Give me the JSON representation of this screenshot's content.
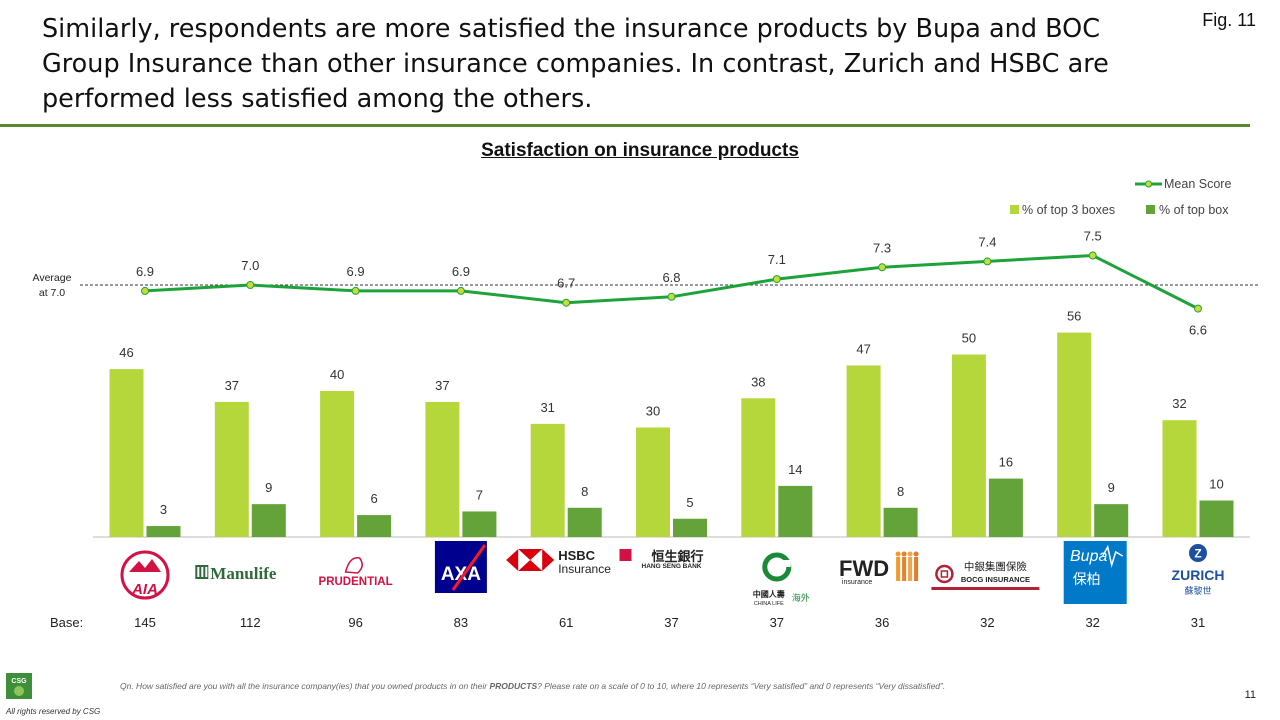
{
  "slide": {
    "headline": "Similarly, respondents are more satisfied the insurance products by Bupa and BOC Group Insurance than other insurance companies. In contrast, Zurich and HSBC are performed less satisfied among the others.",
    "fig_label": "Fig. 11",
    "footnote_pre": "Qn. How satisfied are you with all the insurance company(ies) that you owned products in on their ",
    "footnote_bold": "PRODUCTS",
    "footnote_post": "? Please rate on a scale of 0 to 10, where 10 represents “Very satisfied” and 0 represents “Very dissatisfied”.",
    "copyright": "All rights reserved by CSG",
    "page_number": "11",
    "logo_text": "CSG"
  },
  "colors": {
    "top3": "#b5d73c",
    "top1": "#64a33a",
    "line": "#1ea33a",
    "marker_fill": "#c5dc3c",
    "rule": "#5a8a2e"
  },
  "chart_data": {
    "type": "bar",
    "title": "Satisfaction on insurance products",
    "categories": [
      "AIA",
      "Manulife",
      "PRUDENTIAL",
      "AXA",
      "HSBC Insurance",
      "HANG SENG BANK",
      "China Life",
      "FWD insurance",
      "BOCG INSURANCE",
      "Bupa",
      "ZURICH"
    ],
    "series": [
      {
        "name": "% of top 3 boxes",
        "values": [
          46,
          37,
          40,
          37,
          31,
          30,
          38,
          47,
          50,
          56,
          32
        ]
      },
      {
        "name": "% of top box",
        "values": [
          3,
          9,
          6,
          7,
          8,
          5,
          14,
          8,
          16,
          9,
          10
        ]
      }
    ],
    "line": {
      "name": "Mean Score",
      "values": [
        6.9,
        7.0,
        6.9,
        6.9,
        6.7,
        6.8,
        7.1,
        7.3,
        7.4,
        7.5,
        6.6
      ]
    },
    "reference_line": {
      "label_line1": "Average",
      "label_line2": "at 7.0",
      "value": 7.0
    },
    "base_label": "Base:",
    "base": [
      145,
      112,
      96,
      83,
      61,
      37,
      37,
      36,
      32,
      32,
      31
    ],
    "legend_position": "top-right"
  },
  "logos": {
    "aia": "AIA",
    "manulife": "Manulife",
    "prudential": "PRUDENTIAL",
    "axa": "AXA",
    "hsbc_name": "HSBC",
    "hsbc_sub": "Insurance",
    "hangseng_cn": "恒生銀行",
    "hangseng_en": "HANG SENG BANK",
    "chinalife_cn": "中國人壽",
    "chinalife_en": "CHINA LIFE",
    "chinalife_tag": "海外",
    "fwd": "FWD",
    "fwd_sub": "insurance",
    "bocg_cn": "中銀集團保險",
    "bocg_en": "BOCG INSURANCE",
    "bupa": "Bupa",
    "bupa_cn": "保柏",
    "zurich": "ZURICH",
    "zurich_cn": "蘇黎世"
  }
}
